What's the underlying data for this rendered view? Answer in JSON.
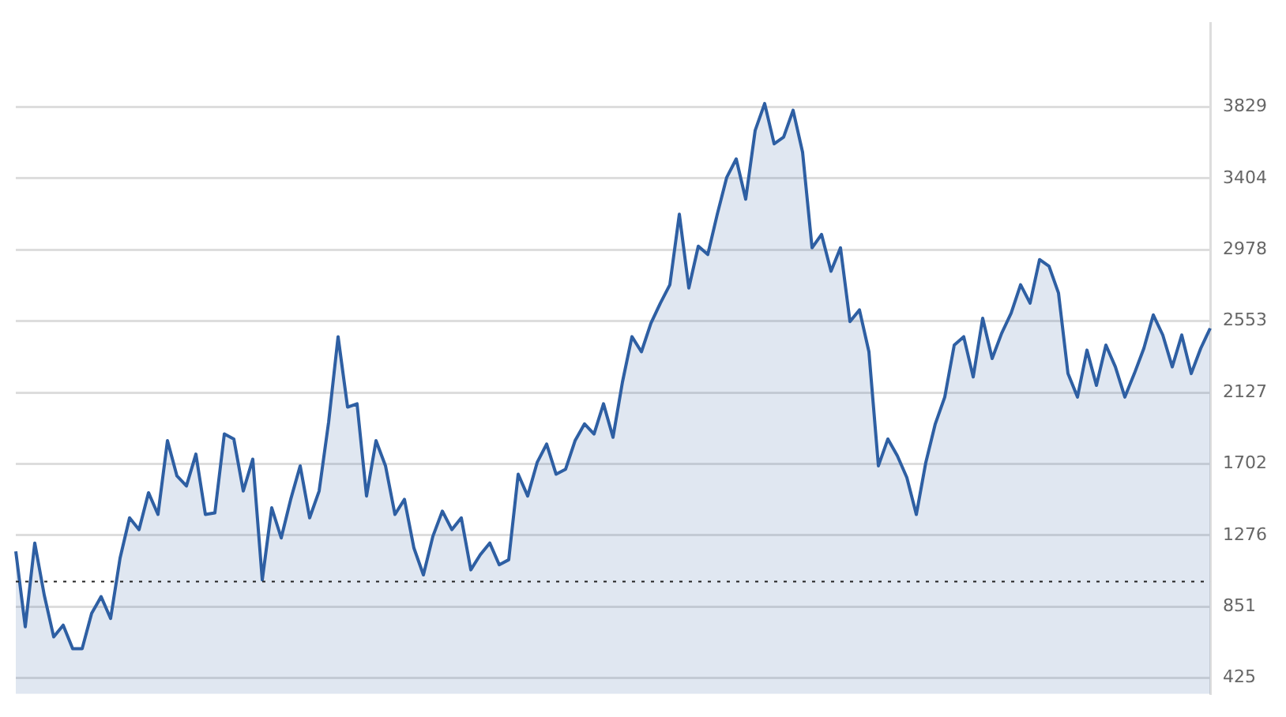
{
  "chart_data": {
    "type": "area",
    "categories": [
      null,
      null,
      null,
      null,
      null,
      null,
      null,
      null,
      null,
      null,
      null,
      null,
      null,
      null,
      null,
      null,
      null,
      null,
      null,
      null,
      null,
      null,
      null,
      null,
      null,
      null,
      null,
      null,
      null,
      null,
      null,
      null,
      null,
      null,
      null,
      null,
      null,
      null,
      null,
      null,
      null,
      null,
      null,
      null,
      null,
      null,
      null,
      null,
      null,
      null,
      null,
      null,
      null,
      null,
      null,
      null,
      null,
      null,
      null,
      null,
      null,
      null,
      null,
      null,
      null,
      null,
      null,
      null,
      null,
      null,
      null,
      null,
      null,
      null,
      null,
      null,
      null,
      null,
      null,
      null,
      null,
      null,
      null,
      null,
      null,
      null,
      null,
      null,
      null,
      null,
      null,
      null,
      null,
      null,
      null,
      null,
      null,
      null,
      null,
      null,
      null,
      null,
      null,
      null,
      null,
      null,
      null,
      null,
      null,
      null,
      null,
      null,
      null,
      null,
      null,
      null,
      null,
      null,
      null,
      null,
      null,
      null,
      null,
      null,
      null,
      null,
      null
    ],
    "series": [
      {
        "color": "#2e5fa3",
        "values": [
          1180,
          730,
          1230,
          920,
          670,
          740,
          600,
          600,
          810,
          910,
          780,
          1140,
          1380,
          1310,
          1530,
          1400,
          1840,
          1630,
          1570,
          1760,
          1400,
          1410,
          1880,
          1850,
          1540,
          1730,
          1010,
          1440,
          1260,
          1490,
          1690,
          1380,
          1540,
          1950,
          2460,
          2040,
          2060,
          1510,
          1840,
          1690,
          1400,
          1490,
          1200,
          1040,
          1270,
          1420,
          1310,
          1380,
          1070,
          1160,
          1230,
          1100,
          1130,
          1640,
          1510,
          1710,
          1820,
          1640,
          1670,
          1840,
          1940,
          1880,
          2060,
          1860,
          2190,
          2460,
          2370,
          2540,
          2660,
          2770,
          3190,
          2750,
          3000,
          2950,
          3190,
          3410,
          3520,
          3280,
          3690,
          3850,
          3610,
          3650,
          3810,
          3560,
          2990,
          3070,
          2850,
          2990,
          2550,
          2620,
          2370,
          1690,
          1850,
          1750,
          1620,
          1400,
          1710,
          1940,
          2100,
          2410,
          2460,
          2220,
          2570,
          2330,
          2480,
          2600,
          2770,
          2660,
          2920,
          2880,
          2720,
          2240,
          2100,
          2380,
          2170,
          2410,
          2280,
          2100,
          2240,
          2390,
          2590,
          2470,
          2280,
          2470,
          2240,
          2390,
          2510
        ]
      }
    ],
    "ylim": [
      330,
      4330
    ],
    "yticks": [
      425,
      851,
      1276,
      1702,
      2127,
      2553,
      2978,
      3404,
      3829
    ],
    "grid": "y",
    "legend": false,
    "marker": "none",
    "line_style": "solid",
    "ref_lines": [
      {
        "axis": "y",
        "value": 1000,
        "color": "#222222",
        "line_style": "dotted"
      }
    ]
  }
}
